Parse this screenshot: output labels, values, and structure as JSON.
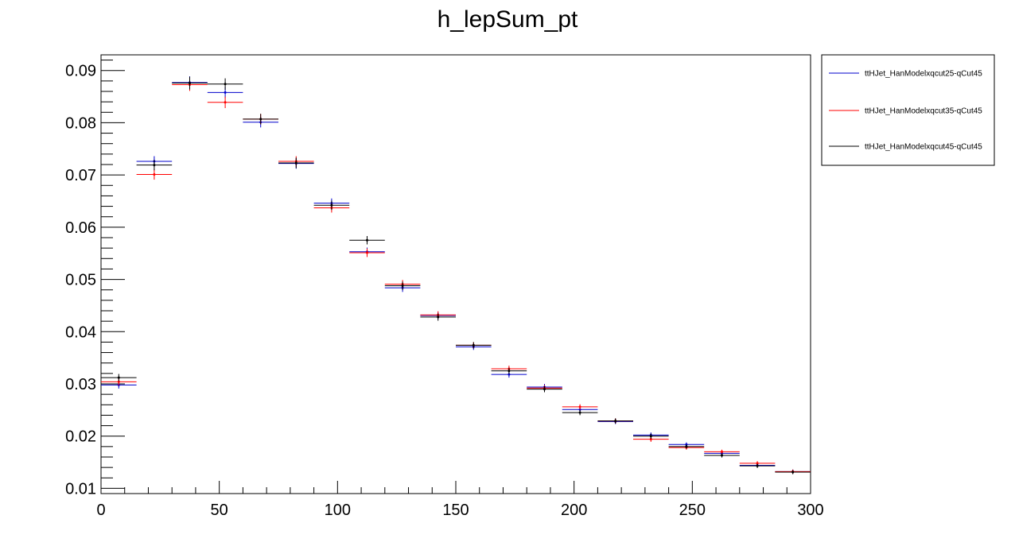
{
  "chart_data": {
    "type": "scatter",
    "title": "h_lepSum_pt",
    "xlabel": "",
    "ylabel": "",
    "xlim": [
      0,
      300
    ],
    "ylim": [
      0.009,
      0.093
    ],
    "x_ticks": [
      0,
      50,
      100,
      150,
      200,
      250,
      300
    ],
    "x_tick_labels": [
      "0",
      "50",
      "100",
      "150",
      "200",
      "250",
      "300"
    ],
    "y_ticks": [
      0.01,
      0.02,
      0.03,
      0.04,
      0.05,
      0.06,
      0.07,
      0.08,
      0.09
    ],
    "y_tick_labels": [
      "0.01",
      "0.02",
      "0.03",
      "0.04",
      "0.05",
      "0.06",
      "0.07",
      "0.08",
      "0.09"
    ],
    "grid": false,
    "legend_position": "right",
    "bin_width": 15,
    "x": [
      7.5,
      22.5,
      37.5,
      52.5,
      67.5,
      82.5,
      97.5,
      112.5,
      127.5,
      142.5,
      157.5,
      172.5,
      187.5,
      202.5,
      217.5,
      232.5,
      247.5,
      262.5,
      277.5,
      292.5
    ],
    "series": [
      {
        "name": "ttHJet_HanModelxqcut25-qCut45",
        "color": "#0000cc",
        "values": [
          0.0298,
          0.0726,
          0.0877,
          0.0858,
          0.0801,
          0.0722,
          0.0646,
          0.0553,
          0.0484,
          0.0431,
          0.0371,
          0.0318,
          0.0294,
          0.0251,
          0.0228,
          0.0202,
          0.0184,
          0.0167,
          0.0144,
          0.0132
        ],
        "errors": [
          0.0007,
          0.001,
          0.0012,
          0.0011,
          0.001,
          0.001,
          0.0009,
          0.0008,
          0.0008,
          0.0007,
          0.0006,
          0.0006,
          0.0006,
          0.0005,
          0.0005,
          0.0005,
          0.0004,
          0.0004,
          0.0004,
          0.0004
        ]
      },
      {
        "name": "ttHJet_HanModelxqcut35-qCut45",
        "color": "#ff0000",
        "values": [
          0.0304,
          0.0701,
          0.0873,
          0.0839,
          0.0807,
          0.0726,
          0.0637,
          0.0551,
          0.0491,
          0.0432,
          0.0374,
          0.0329,
          0.0292,
          0.0256,
          0.0229,
          0.0194,
          0.0178,
          0.017,
          0.0148,
          0.0132
        ],
        "errors": [
          0.0007,
          0.001,
          0.0012,
          0.0011,
          0.001,
          0.001,
          0.0009,
          0.0008,
          0.0008,
          0.0007,
          0.0006,
          0.0006,
          0.0006,
          0.0005,
          0.0005,
          0.0005,
          0.0004,
          0.0004,
          0.0004,
          0.0004
        ]
      },
      {
        "name": "ttHJet_HanModelxqcut45-qCut45",
        "color": "#000000",
        "values": [
          0.0312,
          0.0719,
          0.0876,
          0.0874,
          0.0807,
          0.0723,
          0.0642,
          0.0575,
          0.0488,
          0.0428,
          0.0374,
          0.0325,
          0.029,
          0.0245,
          0.0229,
          0.02,
          0.018,
          0.0163,
          0.0143,
          0.0131
        ],
        "errors": [
          0.0007,
          0.001,
          0.0012,
          0.0011,
          0.001,
          0.001,
          0.0009,
          0.0008,
          0.0008,
          0.0007,
          0.0006,
          0.0006,
          0.0006,
          0.0005,
          0.0005,
          0.0005,
          0.0004,
          0.0004,
          0.0004,
          0.0004
        ]
      }
    ]
  }
}
